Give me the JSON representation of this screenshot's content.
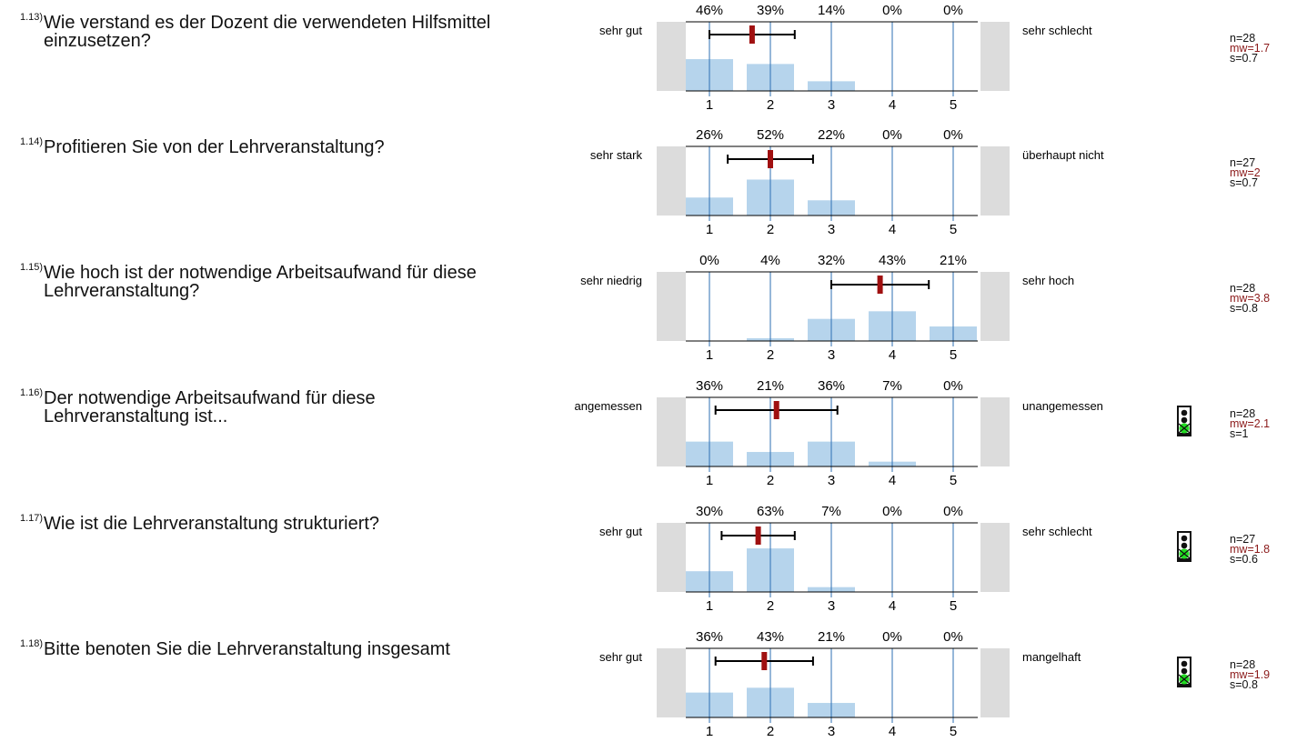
{
  "questions": [
    {
      "num": "1.13)",
      "text": "Wie verstand es der Dozent die verwendeten Hilfsmittel einzusetzen?",
      "left": "sehr gut",
      "right": "sehr schlecht",
      "n": "n=28",
      "mw": "mw=1.7",
      "s": "s=0.7",
      "traffic_light": false
    },
    {
      "num": "1.14)",
      "text": "Profitieren Sie von der Lehrveranstaltung?",
      "left": "sehr stark",
      "right": "überhaupt nicht",
      "n": "n=27",
      "mw": "mw=2",
      "s": "s=0.7",
      "traffic_light": false
    },
    {
      "num": "1.15)",
      "text": "Wie hoch ist der notwendige Arbeitsaufwand für diese Lehrveranstaltung?",
      "left": "sehr niedrig",
      "right": "sehr hoch",
      "n": "n=28",
      "mw": "mw=3.8",
      "s": "s=0.8",
      "traffic_light": false
    },
    {
      "num": "1.16)",
      "text": "Der notwendige Arbeitsaufwand für diese Lehrveranstaltung ist...",
      "left": "angemessen",
      "right": "unangemessen",
      "n": "n=28",
      "mw": "mw=2.1",
      "s": "s=1",
      "traffic_light": true
    },
    {
      "num": "1.17)",
      "text": "Wie ist die Lehrveranstaltung strukturiert?",
      "left": "sehr gut",
      "right": "sehr schlecht",
      "n": "n=27",
      "mw": "mw=1.8",
      "s": "s=0.6",
      "traffic_light": true
    },
    {
      "num": "1.18)",
      "text": "Bitte benoten Sie die Lehrveranstaltung insgesamt",
      "left": "sehr gut",
      "right": "mangelhaft",
      "n": "n=28",
      "mw": "mw=1.9",
      "s": "s=0.8",
      "traffic_light": true
    }
  ],
  "colors": {
    "bar": "#b6d4ec",
    "gridline": "#2e6fb3",
    "side_panel": "#dcdcdc",
    "mean_marker": "#a01010",
    "mw_text": "#8b1a1a",
    "traffic_light_green": "#22dd22"
  },
  "icons": {
    "traffic_light": "traffic-light-icon"
  },
  "chart_data": [
    {
      "type": "bar",
      "categories": [
        "1",
        "2",
        "3",
        "4",
        "5"
      ],
      "labels": [
        "46%",
        "39%",
        "14%",
        "0%",
        "0%"
      ],
      "values": [
        46,
        39,
        14,
        0,
        0
      ],
      "mean": 1.7,
      "sd": 0.7,
      "n": 28,
      "ylim": [
        0,
        100
      ]
    },
    {
      "type": "bar",
      "categories": [
        "1",
        "2",
        "3",
        "4",
        "5"
      ],
      "labels": [
        "26%",
        "52%",
        "22%",
        "0%",
        "0%"
      ],
      "values": [
        26,
        52,
        22,
        0,
        0
      ],
      "mean": 2.0,
      "sd": 0.7,
      "n": 27,
      "ylim": [
        0,
        100
      ]
    },
    {
      "type": "bar",
      "categories": [
        "1",
        "2",
        "3",
        "4",
        "5"
      ],
      "labels": [
        "0%",
        "4%",
        "32%",
        "43%",
        "21%"
      ],
      "values": [
        0,
        4,
        32,
        43,
        21
      ],
      "mean": 3.8,
      "sd": 0.8,
      "n": 28,
      "ylim": [
        0,
        100
      ]
    },
    {
      "type": "bar",
      "categories": [
        "1",
        "2",
        "3",
        "4",
        "5"
      ],
      "labels": [
        "36%",
        "21%",
        "36%",
        "7%",
        "0%"
      ],
      "values": [
        36,
        21,
        36,
        7,
        0
      ],
      "mean": 2.1,
      "sd": 1.0,
      "n": 28,
      "ylim": [
        0,
        100
      ]
    },
    {
      "type": "bar",
      "categories": [
        "1",
        "2",
        "3",
        "4",
        "5"
      ],
      "labels": [
        "30%",
        "63%",
        "7%",
        "0%",
        "0%"
      ],
      "values": [
        30,
        63,
        7,
        0,
        0
      ],
      "mean": 1.8,
      "sd": 0.6,
      "n": 27,
      "ylim": [
        0,
        100
      ]
    },
    {
      "type": "bar",
      "categories": [
        "1",
        "2",
        "3",
        "4",
        "5"
      ],
      "labels": [
        "36%",
        "43%",
        "21%",
        "0%",
        "0%"
      ],
      "values": [
        36,
        43,
        21,
        0,
        0
      ],
      "mean": 1.9,
      "sd": 0.8,
      "n": 28,
      "ylim": [
        0,
        100
      ]
    }
  ]
}
